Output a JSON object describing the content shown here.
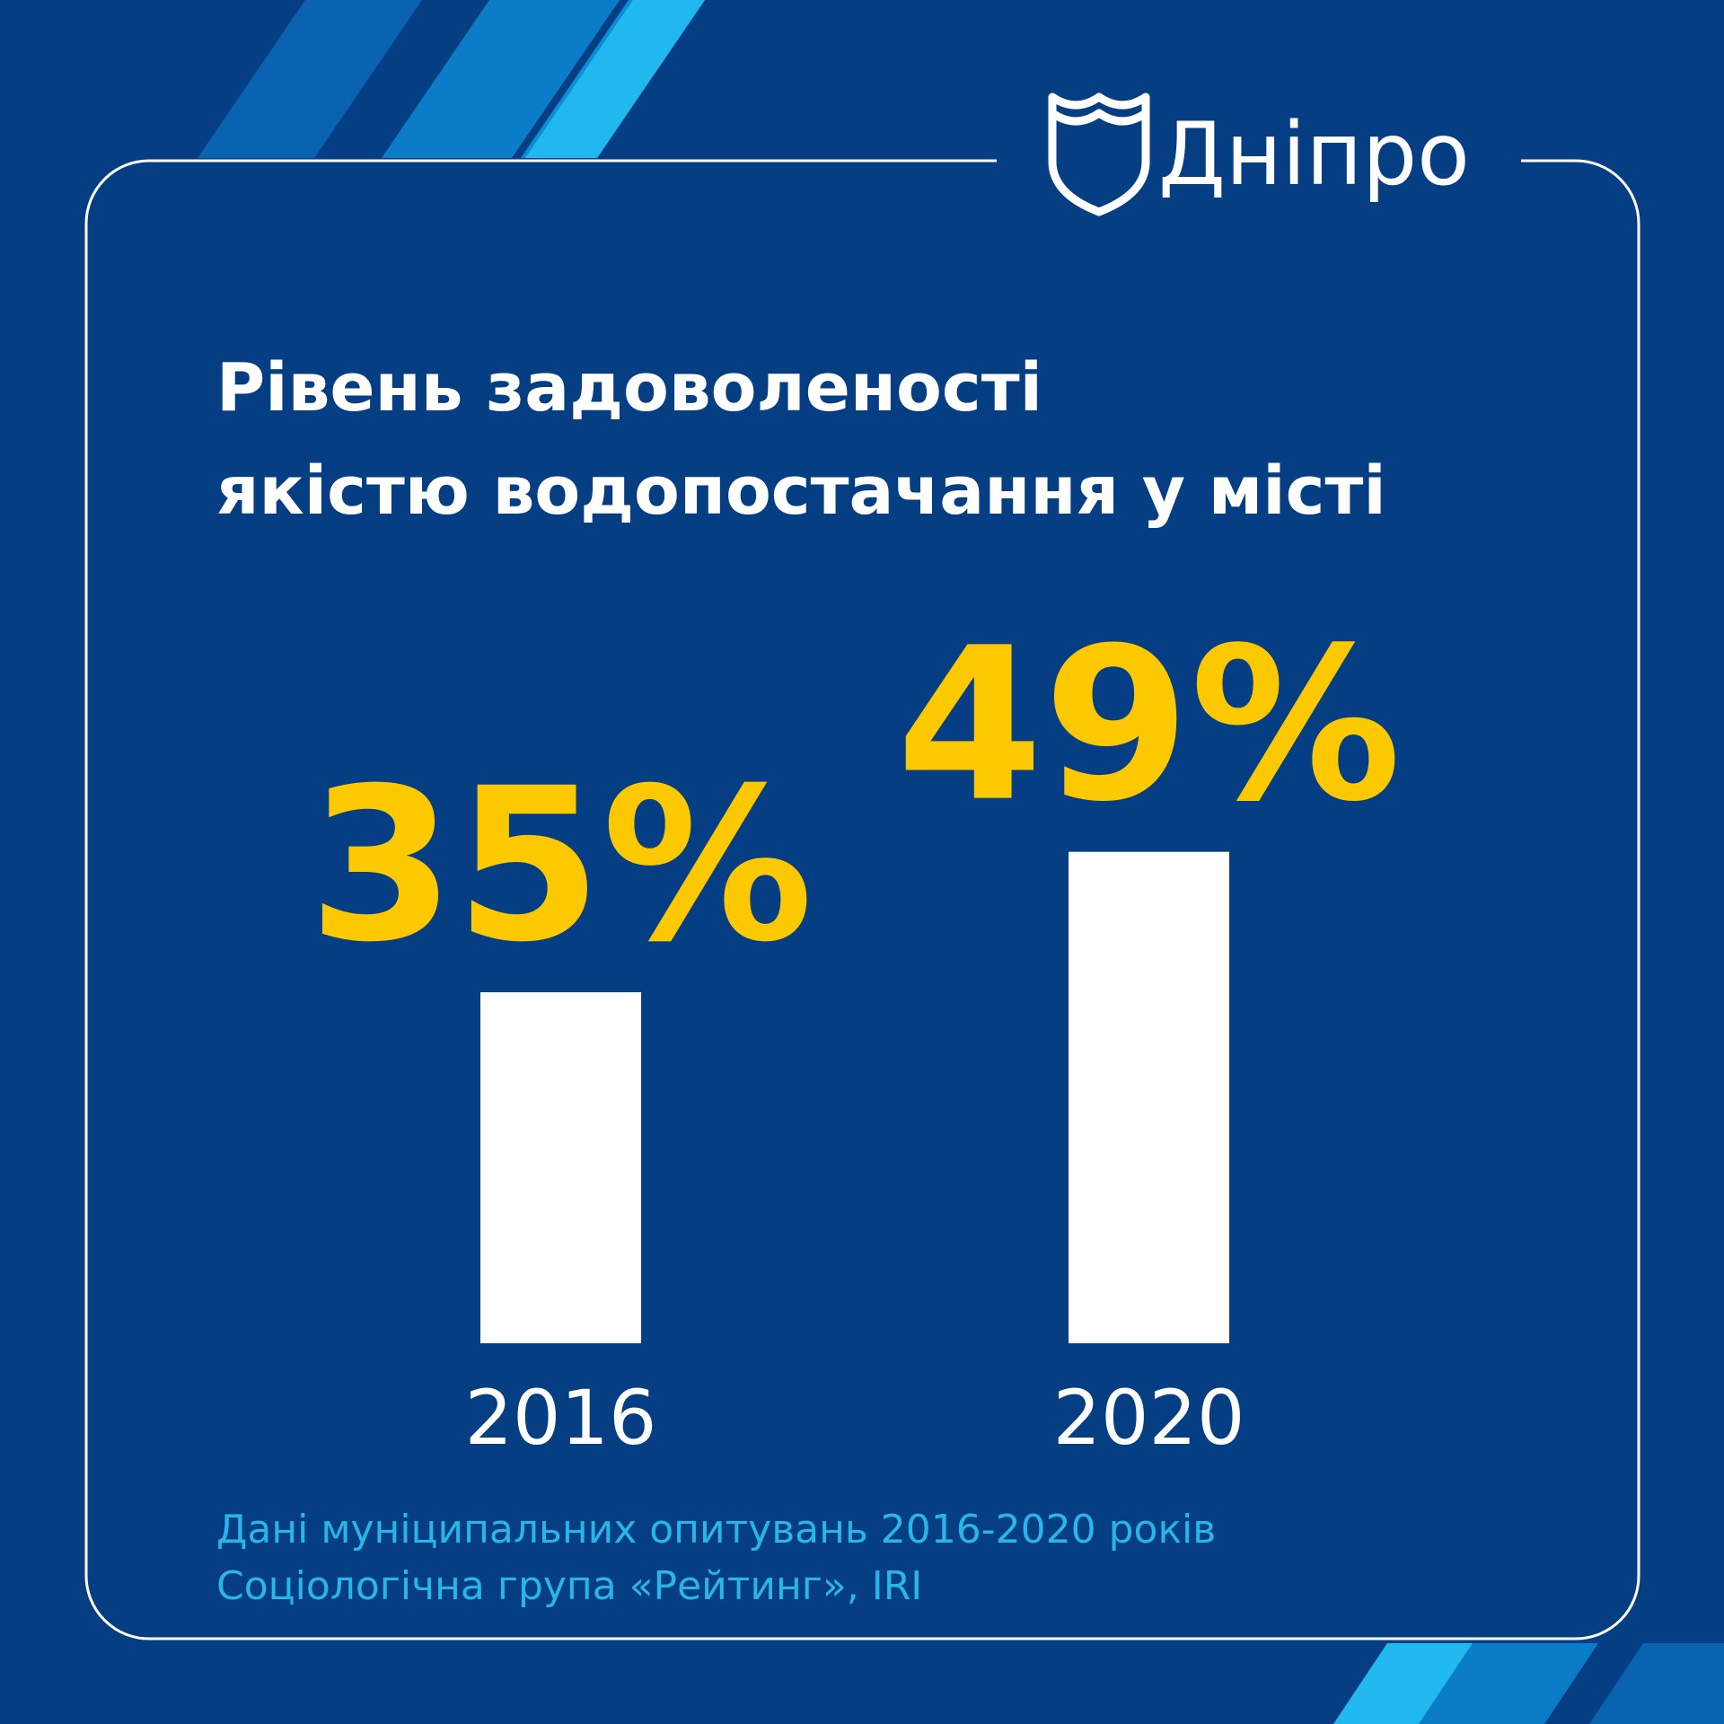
{
  "brand": "Дніпро",
  "chart_data": {
    "type": "bar",
    "title": [
      "Рівень задоволеності",
      "якістю водопостачання у місті"
    ],
    "categories": [
      "2016",
      "2020"
    ],
    "values": [
      35,
      49
    ],
    "value_labels": [
      "35%",
      "49%"
    ],
    "color": "#ffffff",
    "label_color": "#fcc800",
    "source": [
      "Дані муніципальних опитувань 2016-2020 років",
      "Соціологічна група «Рейтинг», IRI"
    ]
  }
}
